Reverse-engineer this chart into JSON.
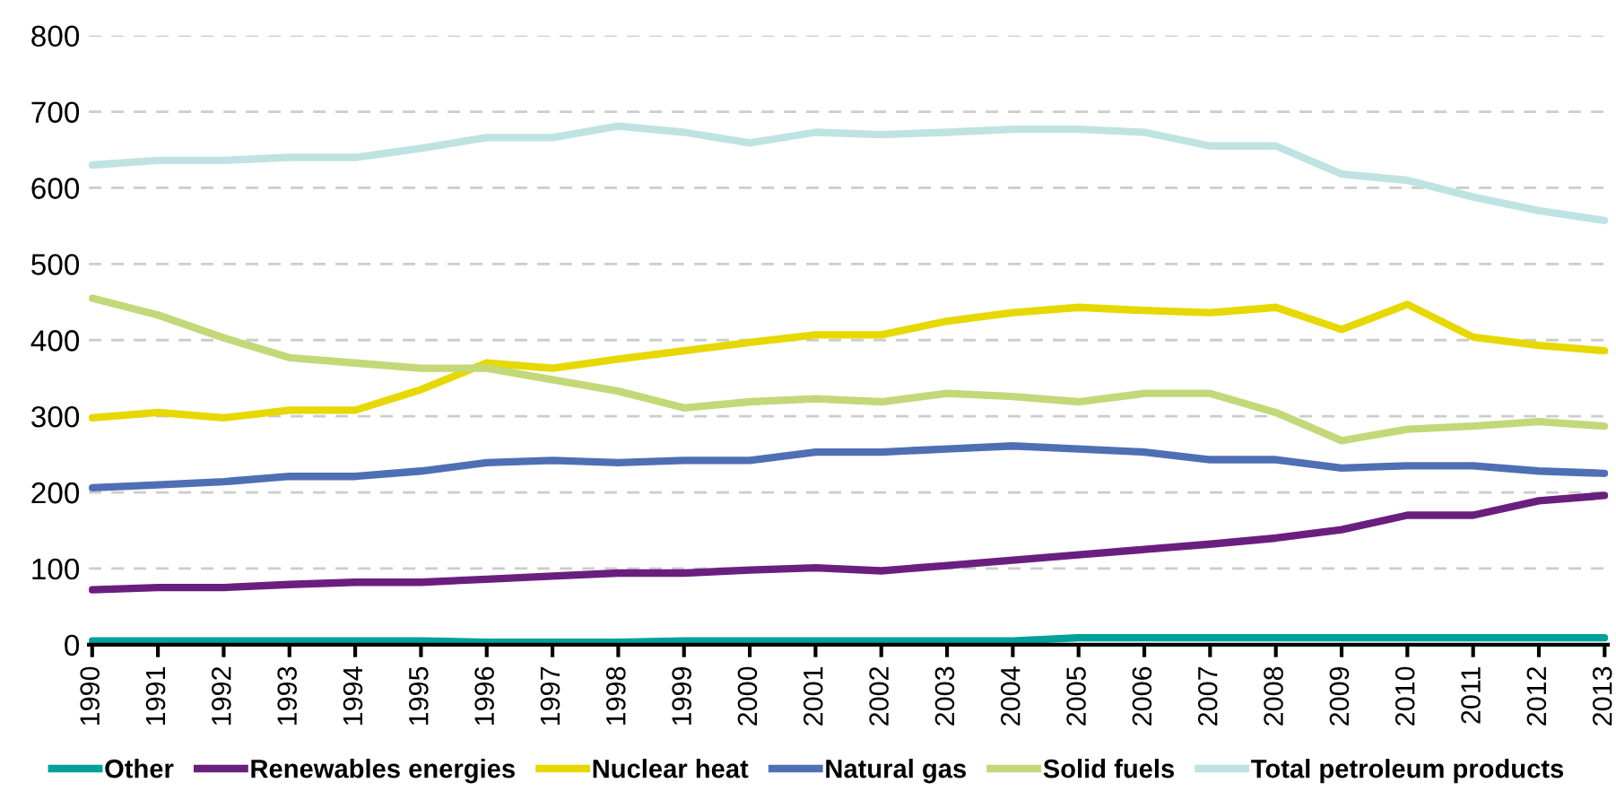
{
  "chart_data": {
    "type": "line",
    "categories": [
      "1990",
      "1991",
      "1992",
      "1993",
      "1994",
      "1995",
      "1996",
      "1997",
      "1998",
      "1999",
      "2000",
      "2001",
      "2002",
      "2003",
      "2004",
      "2005",
      "2006",
      "2007",
      "2008",
      "2009",
      "2010",
      "2011",
      "2012",
      "2013"
    ],
    "series": [
      {
        "name": "Other",
        "color": "#00a19a",
        "values": [
          5,
          5,
          5,
          5,
          5,
          5,
          3,
          3,
          3,
          5,
          5,
          5,
          5,
          5,
          5,
          9,
          9,
          9,
          9,
          9,
          9,
          9,
          9,
          9
        ]
      },
      {
        "name": "Renewables energies",
        "color": "#6a1f7f",
        "values": [
          72,
          75,
          75,
          79,
          82,
          82,
          86,
          90,
          94,
          94,
          98,
          101,
          97,
          104,
          111,
          118,
          125,
          132,
          140,
          151,
          170,
          170,
          189,
          196
        ]
      },
      {
        "name": "Nuclear heat",
        "color": "#e6d800",
        "values": [
          298,
          305,
          298,
          308,
          308,
          335,
          370,
          363,
          375,
          386,
          397,
          407,
          407,
          425,
          436,
          443,
          439,
          436,
          443,
          414,
          447,
          404,
          393,
          386
        ]
      },
      {
        "name": "Natural gas",
        "color": "#4f6fb5",
        "values": [
          206,
          210,
          214,
          221,
          221,
          228,
          239,
          242,
          239,
          242,
          242,
          253,
          253,
          257,
          261,
          257,
          253,
          243,
          243,
          232,
          235,
          235,
          228,
          225
        ]
      },
      {
        "name": "Solid fuels",
        "color": "#c3d878",
        "values": [
          455,
          433,
          403,
          377,
          370,
          363,
          363,
          348,
          333,
          311,
          319,
          323,
          319,
          330,
          326,
          319,
          330,
          330,
          305,
          268,
          283,
          287,
          293,
          287
        ]
      },
      {
        "name": "Total petroleum products",
        "color": "#bfe3e2",
        "values": [
          630,
          636,
          636,
          640,
          640,
          652,
          666,
          666,
          681,
          673,
          659,
          673,
          670,
          673,
          677,
          677,
          673,
          655,
          655,
          618,
          610,
          588,
          570,
          557
        ]
      }
    ],
    "ylim": [
      0,
      800
    ],
    "yticks": [
      0,
      100,
      200,
      300,
      400,
      500,
      600,
      700,
      800
    ],
    "grid": "y",
    "legend": "bottom",
    "marker": "none",
    "line_style": "solid"
  }
}
